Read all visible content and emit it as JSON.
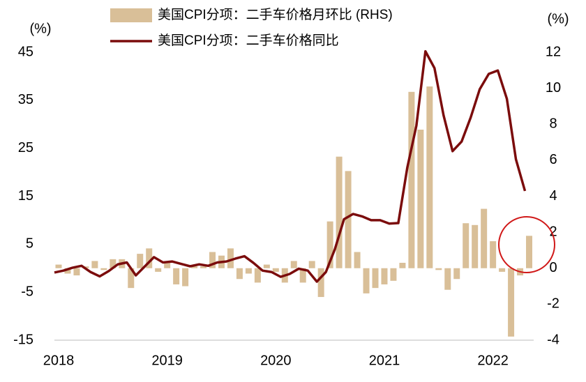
{
  "chart_data": {
    "type": "bar-line",
    "y_label": "(%)",
    "y2_label": "(%)",
    "categories": [
      "2018",
      null,
      null,
      null,
      null,
      null,
      null,
      null,
      null,
      null,
      null,
      null,
      "2019",
      null,
      null,
      null,
      null,
      null,
      null,
      null,
      null,
      null,
      null,
      null,
      "2020",
      null,
      null,
      null,
      null,
      null,
      null,
      null,
      null,
      null,
      null,
      null,
      "2021",
      null,
      null,
      null,
      null,
      null,
      null,
      null,
      null,
      null,
      null,
      null,
      "2022",
      null,
      null,
      null,
      null
    ],
    "series": [
      {
        "name": "美国CPI分项：二手车价格月环比 (RHS)",
        "type": "bar",
        "axis": "y2",
        "color": "#d9bf98",
        "values": [
          0.2,
          -0.3,
          -0.4,
          0.1,
          0.4,
          -0.1,
          0.5,
          0.5,
          -1.1,
          0.8,
          1.1,
          -0.2,
          0.3,
          -0.9,
          -1.0,
          0.1,
          0.1,
          0.9,
          0.7,
          1.1,
          -0.6,
          -0.3,
          -0.8,
          0.2,
          -0.2,
          -0.8,
          0.4,
          -0.8,
          0.4,
          -1.6,
          2.6,
          6.2,
          5.4,
          0.9,
          -1.4,
          -1.1,
          -0.9,
          -0.7,
          0.3,
          9.8,
          7.7,
          10.1,
          -0.1,
          -1.2,
          -0.6,
          2.5,
          2.4,
          3.3,
          1.5,
          -0.2,
          -3.8,
          -0.4,
          1.8
        ]
      },
      {
        "name": "美国CPI分项：二手车价格同比",
        "type": "line",
        "color": "#7b0c0c",
        "values": [
          -0.9,
          -0.5,
          0.1,
          0.5,
          -0.8,
          -1.7,
          -0.6,
          0.8,
          1.2,
          -1.5,
          0.4,
          2.3,
          1.2,
          1.4,
          0.9,
          0.4,
          0.8,
          0.5,
          1.2,
          1.4,
          2.0,
          2.5,
          1.1,
          -0.5,
          -0.8,
          -1.8,
          -1.2,
          -0.1,
          -0.5,
          -2.8,
          -0.8,
          4.0,
          10.2,
          11.3,
          10.8,
          10.0,
          10.0,
          9.3,
          9.4,
          21.0,
          29.7,
          45.2,
          41.7,
          31.9,
          24.4,
          26.4,
          31.4,
          37.3,
          40.5,
          41.2,
          35.3,
          22.7,
          16.1
        ]
      }
    ],
    "ylim": [
      -15,
      45
    ],
    "yticks": [
      -15,
      -5,
      5,
      15,
      25,
      35,
      45
    ],
    "y2lim": [
      -4,
      12
    ],
    "y2ticks": [
      -4,
      -2,
      0,
      2,
      4,
      6,
      8,
      10,
      12
    ],
    "negative_tick_color": "#e00000"
  }
}
